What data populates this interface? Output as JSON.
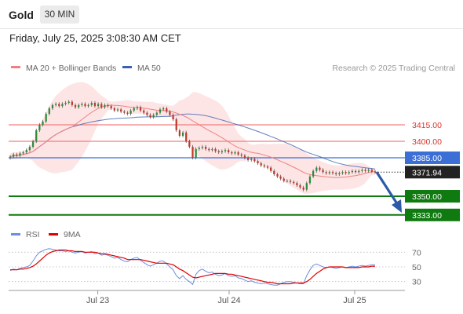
{
  "header": {
    "title": "Gold",
    "timeframe": "30 MIN"
  },
  "timestamp": "Friday, July 25, 2025 3:08:30 AM CET",
  "legend": {
    "bb_label": "MA 20 + Bollinger Bands",
    "ma50_label": "MA 50",
    "credit": "Research © 2025 Trading Central",
    "rsi_label": "RSI",
    "rsi_ma_label": "9MA"
  },
  "colors": {
    "ma20": "#f08080",
    "band": "#fde0e0",
    "ma50": "#3a62b0",
    "up": "#2e8b3c",
    "down": "#c0392b",
    "support": "#0f7a0f",
    "resistance": "#f08080",
    "pivot": "#3b6fd6",
    "arrow": "#2d5aa8",
    "rsi": "#6c8ee0",
    "rsi_ma": "#e00000"
  },
  "chart_data": [
    {
      "type": "candlestick",
      "title": "Gold",
      "timeframe": "30 MIN",
      "x_ticks": [
        "Jul 23",
        "Jul 24",
        "Jul 25"
      ],
      "ylim": [
        3325,
        3450
      ],
      "levels": [
        {
          "value": 3415.0,
          "label": "3415.00",
          "kind": "resistance"
        },
        {
          "value": 3400.0,
          "label": "3400.00",
          "kind": "resistance"
        },
        {
          "value": 3385.0,
          "label": "3385.00",
          "kind": "pivot"
        },
        {
          "value": 3350.0,
          "label": "3350.00",
          "kind": "support"
        },
        {
          "value": 3333.0,
          "label": "3333.00",
          "kind": "support"
        }
      ],
      "last_price": {
        "value": 3371.94,
        "label": "3371.94"
      },
      "closes": [
        3386,
        3388,
        3387,
        3389,
        3390,
        3392,
        3395,
        3400,
        3410,
        3415,
        3418,
        3425,
        3430,
        3433,
        3434,
        3432,
        3434,
        3435,
        3436,
        3433,
        3431,
        3433,
        3434,
        3432,
        3433,
        3435,
        3432,
        3434,
        3431,
        3433,
        3432,
        3430,
        3428,
        3429,
        3427,
        3426,
        3425,
        3428,
        3430,
        3431,
        3428,
        3426,
        3424,
        3422,
        3424,
        3426,
        3429,
        3430,
        3427,
        3424,
        3420,
        3410,
        3405,
        3408,
        3400,
        3395,
        3385,
        3393,
        3394,
        3395,
        3393,
        3392,
        3393,
        3391,
        3390,
        3391,
        3392,
        3390,
        3389,
        3390,
        3388,
        3387,
        3385,
        3383,
        3384,
        3382,
        3380,
        3378,
        3377,
        3376,
        3373,
        3370,
        3368,
        3366,
        3364,
        3364,
        3363,
        3362,
        3360,
        3358,
        3356,
        3362,
        3368,
        3373,
        3376,
        3374,
        3372,
        3371,
        3372,
        3371,
        3370,
        3371,
        3372,
        3371,
        3372,
        3373,
        3372,
        3373,
        3374,
        3373,
        3374,
        3372.5,
        3371.94
      ],
      "legend": [
        "MA 20 + Bollinger Bands",
        "MA 50"
      ]
    },
    {
      "type": "line",
      "title": "RSI",
      "ylim": [
        20,
        80
      ],
      "y_ticks": [
        70,
        50,
        30
      ],
      "series": [
        {
          "name": "RSI",
          "values": [
            45,
            47,
            46,
            48,
            49,
            50,
            52,
            58,
            65,
            70,
            72,
            74,
            75,
            74,
            73,
            72,
            72,
            71,
            72,
            70,
            69,
            70,
            71,
            69,
            70,
            71,
            68,
            69,
            66,
            67,
            66,
            64,
            62,
            63,
            60,
            58,
            57,
            60,
            62,
            63,
            59,
            56,
            53,
            51,
            53,
            55,
            58,
            58,
            54,
            50,
            46,
            38,
            34,
            38,
            33,
            30,
            26,
            40,
            45,
            47,
            44,
            42,
            43,
            40,
            38,
            39,
            41,
            38,
            37,
            38,
            35,
            34,
            32,
            30,
            31,
            29,
            28,
            27,
            28,
            27,
            26,
            25,
            25,
            27,
            29,
            30,
            30,
            29,
            28,
            27,
            27,
            38,
            46,
            52,
            54,
            52,
            50,
            49,
            50,
            49,
            48,
            49,
            50,
            49,
            50,
            51,
            50,
            51,
            52,
            51,
            52,
            53,
            53
          ]
        },
        {
          "name": "9MA",
          "values": [
            46,
            46,
            46,
            47,
            47,
            48,
            49,
            51,
            54,
            58,
            62,
            66,
            69,
            71,
            72,
            73,
            73,
            73,
            72,
            72,
            71,
            71,
            71,
            70,
            70,
            70,
            70,
            69,
            68,
            68,
            67,
            66,
            65,
            64,
            63,
            62,
            60,
            60,
            60,
            60,
            60,
            59,
            58,
            57,
            56,
            55,
            55,
            55,
            55,
            54,
            53,
            50,
            47,
            45,
            42,
            39,
            36,
            35,
            36,
            37,
            38,
            39,
            40,
            41,
            41,
            41,
            41,
            40,
            40,
            39,
            38,
            37,
            36,
            35,
            34,
            33,
            32,
            31,
            30,
            29,
            29,
            28,
            27,
            27,
            27,
            27,
            27,
            28,
            28,
            28,
            28,
            30,
            33,
            37,
            41,
            44,
            47,
            49,
            50,
            50,
            50,
            50,
            50,
            49,
            49,
            49,
            49,
            49,
            50,
            50,
            50,
            51,
            51
          ]
        }
      ],
      "legend": [
        "RSI",
        "9MA"
      ]
    }
  ]
}
